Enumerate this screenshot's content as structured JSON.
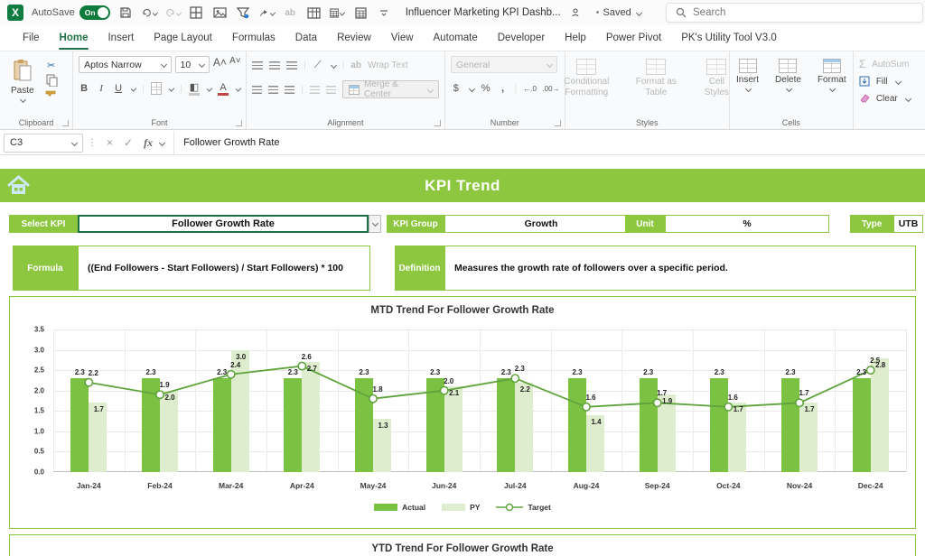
{
  "titlebar": {
    "autosave_label": "AutoSave",
    "autosave_state": "On",
    "doc_title": "Influencer Marketing KPI Dashb...",
    "saved_status": "Saved",
    "search_placeholder": "Search"
  },
  "menu": {
    "tabs": [
      "File",
      "Home",
      "Insert",
      "Page Layout",
      "Formulas",
      "Data",
      "Review",
      "View",
      "Automate",
      "Developer",
      "Help",
      "Power Pivot",
      "PK's Utility Tool V3.0"
    ],
    "active": "Home"
  },
  "ribbon": {
    "clipboard": {
      "paste": "Paste",
      "label": "Clipboard"
    },
    "font": {
      "family": "Aptos Narrow",
      "size": "10",
      "label": "Font"
    },
    "alignment": {
      "wrap": "Wrap Text",
      "merge": "Merge & Center",
      "label": "Alignment"
    },
    "number": {
      "format": "General",
      "label": "Number"
    },
    "styles": {
      "items": [
        "Conditional Formatting",
        "Format as Table",
        "Cell Styles"
      ],
      "label": "Styles"
    },
    "cells": {
      "items": [
        "Insert",
        "Delete",
        "Format"
      ],
      "label": "Cells"
    },
    "editing": {
      "autosum": "AutoSum",
      "fill": "Fill",
      "clear": "Clear"
    }
  },
  "formula_bar": {
    "name_box": "C3",
    "fx": "fx",
    "content": "Follower Growth Rate"
  },
  "dashboard": {
    "title": "KPI Trend",
    "select_kpi": {
      "label": "Select KPI",
      "value": "Follower Growth Rate"
    },
    "kpi_group": {
      "label": "KPI Group",
      "value": "Growth"
    },
    "unit": {
      "label": "Unit",
      "value": "%"
    },
    "type": {
      "label": "Type",
      "value": "UTB"
    },
    "formula": {
      "label": "Formula",
      "value": "((End Followers - Start Followers) / Start Followers) * 100"
    },
    "definition": {
      "label": "Definition",
      "value": "Measures the growth rate of followers over a specific period."
    },
    "ytd_title": "YTD Trend For Follower Growth Rate"
  },
  "chart_data": {
    "type": "bar",
    "title": "MTD Trend For Follower Growth Rate",
    "categories": [
      "Jan-24",
      "Feb-24",
      "Mar-24",
      "Apr-24",
      "May-24",
      "Jun-24",
      "Jul-24",
      "Aug-24",
      "Sep-24",
      "Oct-24",
      "Nov-24",
      "Dec-24"
    ],
    "series": [
      {
        "name": "Actual",
        "type": "bar",
        "color": "#7CC242",
        "values": [
          2.3,
          2.3,
          2.3,
          2.3,
          2.3,
          2.3,
          2.3,
          2.3,
          2.3,
          2.3,
          2.3,
          2.3
        ]
      },
      {
        "name": "PY",
        "type": "bar",
        "color": "#DDEDCD",
        "values": [
          1.7,
          2.0,
          3.0,
          2.7,
          1.3,
          2.1,
          2.2,
          1.4,
          1.9,
          1.7,
          1.7,
          2.8
        ]
      },
      {
        "name": "Target",
        "type": "line",
        "color": "#5FA33C",
        "values": [
          2.2,
          1.9,
          2.4,
          2.6,
          1.8,
          2.0,
          2.3,
          1.6,
          1.7,
          1.6,
          1.7,
          2.5
        ]
      }
    ],
    "xlabel": "",
    "ylabel": "",
    "ylim": [
      0,
      3.5
    ],
    "ytick_step": 0.5,
    "grid": true,
    "legend_position": "bottom"
  },
  "colors": {
    "brand_green": "#8DC63F",
    "actual": "#7CC242",
    "py": "#DDEDCD",
    "target": "#5FA33C",
    "tab_accent": "#217346",
    "excel_green": "#107C41"
  }
}
